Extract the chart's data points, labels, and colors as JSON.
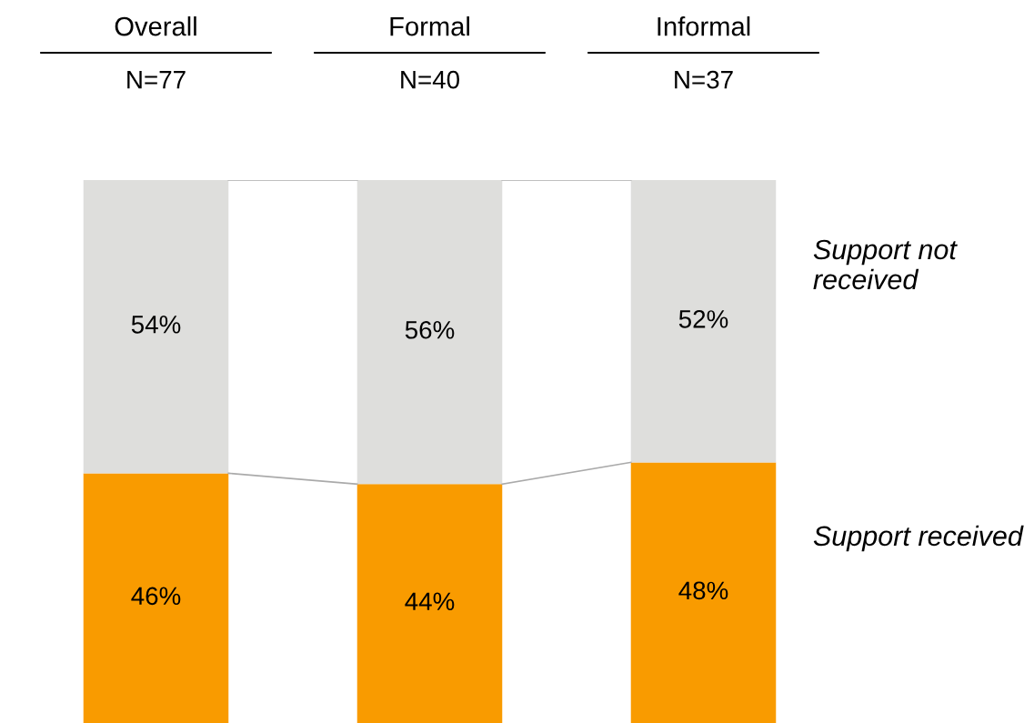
{
  "chart_data": {
    "type": "bar",
    "stacked": true,
    "categories": [
      "Overall",
      "Formal",
      "Informal"
    ],
    "series": [
      {
        "name": "Support received",
        "color": "#f99b00",
        "values": [
          46,
          44,
          48
        ],
        "value_labels": [
          "46%",
          "44%",
          "48%"
        ]
      },
      {
        "name": "Support not received",
        "color": "#dededc",
        "values": [
          54,
          56,
          52
        ],
        "value_labels": [
          "54%",
          "56%",
          "52%"
        ]
      }
    ],
    "legend": false,
    "grid": false,
    "annotations": [
      "N=77",
      "N=40",
      "N=37"
    ]
  }
}
